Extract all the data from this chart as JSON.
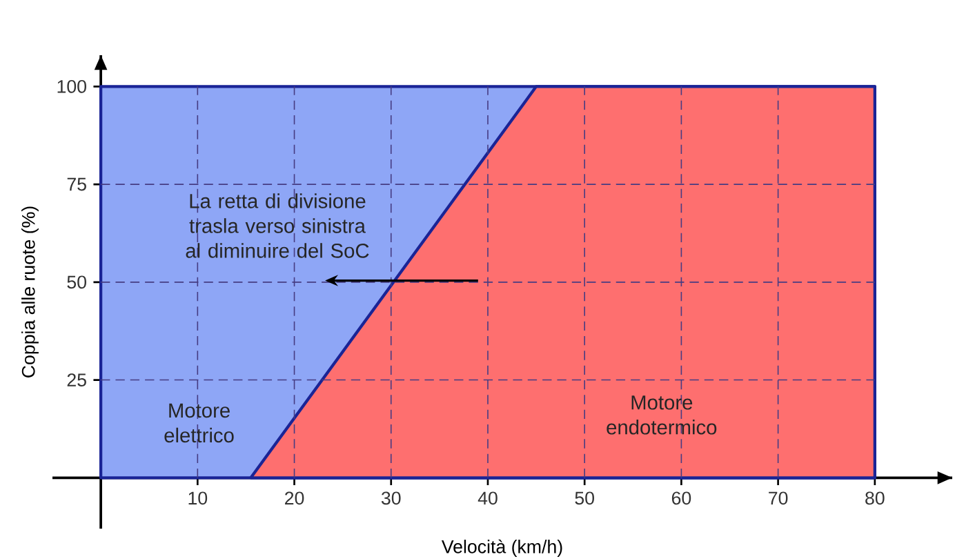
{
  "chart_data": {
    "type": "area",
    "xlabel": "Velocità (km/h)",
    "ylabel": "Coppia alle ruote (%)",
    "series": [
      {
        "color": "#8ea6f6",
        "x": [
          0,
          80
        ],
        "values": [
          100,
          100
        ]
      },
      {
        "color": "#fe6f6f",
        "x": [
          15.5,
          45,
          80
        ],
        "values": [
          0,
          100,
          100
        ]
      }
    ],
    "xlim": [
      -5,
      88
    ],
    "ylim": [
      -13,
      108
    ],
    "xticks": [
      10,
      20,
      30,
      40,
      50,
      60,
      70,
      80
    ],
    "yticks": [
      25,
      50,
      75,
      100
    ],
    "grid": true,
    "annotations": [
      "La retta di divisione trasla verso sinistra al diminuire del SoC",
      "Motore elettrico",
      "Motore endotermico"
    ]
  }
}
